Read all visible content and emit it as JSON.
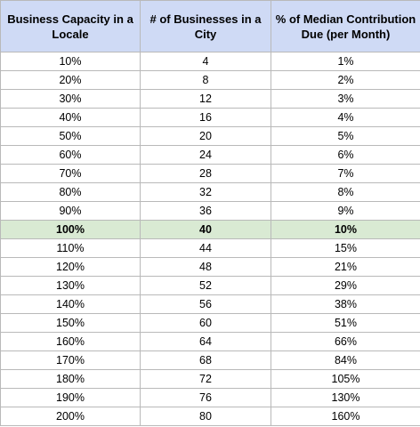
{
  "table": {
    "headers": [
      "Business Capacity in a Locale",
      "# of Businesses in a City",
      "% of Median Contribution Due (per Month)"
    ],
    "highlight_color": "#d9ead3",
    "header_color": "#cfdaf5",
    "highlighted_row": "100%",
    "rows": [
      [
        "10%",
        "4",
        "1%"
      ],
      [
        "20%",
        "8",
        "2%"
      ],
      [
        "30%",
        "12",
        "3%"
      ],
      [
        "40%",
        "16",
        "4%"
      ],
      [
        "50%",
        "20",
        "5%"
      ],
      [
        "60%",
        "24",
        "6%"
      ],
      [
        "70%",
        "28",
        "7%"
      ],
      [
        "80%",
        "32",
        "8%"
      ],
      [
        "90%",
        "36",
        "9%"
      ],
      [
        "100%",
        "40",
        "10%"
      ],
      [
        "110%",
        "44",
        "15%"
      ],
      [
        "120%",
        "48",
        "21%"
      ],
      [
        "130%",
        "52",
        "29%"
      ],
      [
        "140%",
        "56",
        "38%"
      ],
      [
        "150%",
        "60",
        "51%"
      ],
      [
        "160%",
        "64",
        "66%"
      ],
      [
        "170%",
        "68",
        "84%"
      ],
      [
        "180%",
        "72",
        "105%"
      ],
      [
        "190%",
        "76",
        "130%"
      ],
      [
        "200%",
        "80",
        "160%"
      ]
    ]
  }
}
